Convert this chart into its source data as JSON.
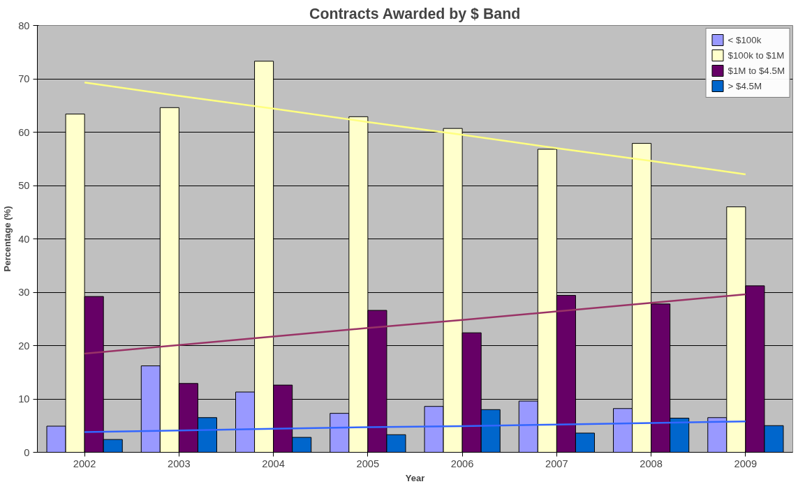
{
  "chart_data": {
    "type": "bar",
    "title": "Contracts Awarded by $ Band",
    "xlabel": "Year",
    "ylabel": "Percentage (%)",
    "categories": [
      "2002",
      "2003",
      "2004",
      "2005",
      "2006",
      "2007",
      "2008",
      "2009"
    ],
    "series": [
      {
        "name": "< $100k",
        "color": "#9999ff",
        "values": [
          4.9,
          16.2,
          11.3,
          7.3,
          8.6,
          9.6,
          8.2,
          6.5
        ]
      },
      {
        "name": "$100k to $1M",
        "color": "#ffffcc",
        "values": [
          63.4,
          64.6,
          73.3,
          62.9,
          60.7,
          56.8,
          57.9,
          46.0
        ]
      },
      {
        "name": "$1M to $4.5M",
        "color": "#660066",
        "values": [
          29.2,
          12.9,
          12.6,
          26.6,
          22.4,
          29.4,
          27.8,
          31.2
        ]
      },
      {
        "name": "> $4.5M",
        "color": "#0066cc",
        "values": [
          2.4,
          6.5,
          2.8,
          3.3,
          8.0,
          3.6,
          6.4,
          5.0
        ]
      },
      {
        "type": "line",
        "color": "#ffff80",
        "values": [
          69.3,
          66.8,
          64.4,
          61.9,
          59.5,
          57.0,
          54.6,
          52.1
        ]
      },
      {
        "type": "line",
        "color": "#993366",
        "values": [
          18.5,
          20.1,
          21.7,
          23.3,
          24.8,
          26.4,
          28.0,
          29.6
        ]
      },
      {
        "type": "line",
        "color": "#3366ff",
        "values": [
          3.8,
          4.1,
          4.4,
          4.7,
          4.9,
          5.2,
          5.5,
          5.8
        ]
      }
    ],
    "ylim": [
      0,
      80
    ],
    "yticks": [
      0,
      10,
      20,
      30,
      40,
      50,
      60,
      70,
      80
    ],
    "grid": "y",
    "legend": "top right"
  }
}
